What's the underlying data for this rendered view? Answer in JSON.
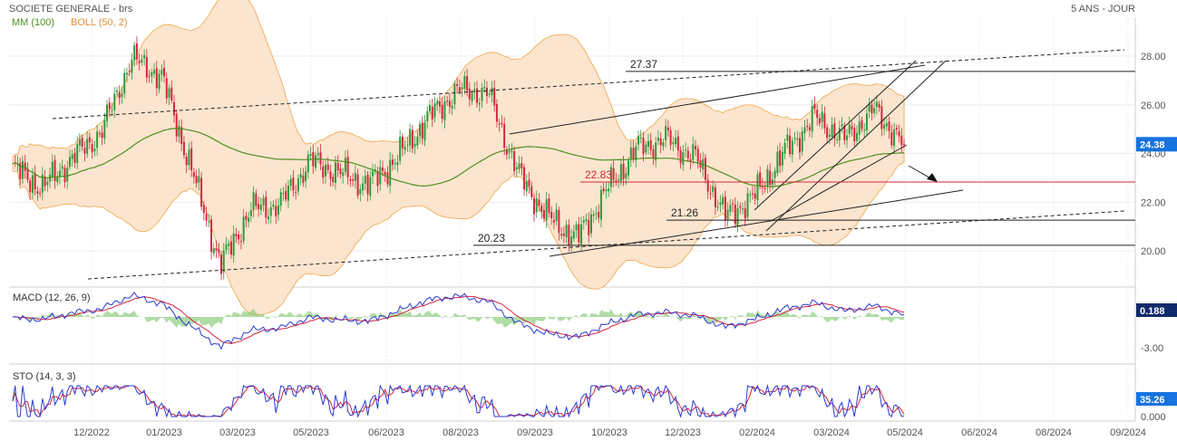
{
  "header": {
    "title": "SOCIETE GENERALE - brs",
    "period": "5 ANS - JOUR",
    "legend_ma": "MM (100)",
    "legend_boll": "BOLL (50, 2)"
  },
  "colors": {
    "up": "#2e9b3b",
    "down": "#d3263f",
    "ma": "#4f8f22",
    "boll_fill": "#fbe5cf",
    "boll_line": "#f0a54a",
    "macd": "#2b3bd0",
    "signal": "#d3263f",
    "hist": "#7cc46b",
    "price_badge": "#1673e0",
    "support": "#d3263f"
  },
  "x_axis": {
    "labels": [
      "12/2022",
      "01/2023",
      "03/2023",
      "05/2023",
      "06/2023",
      "08/2023",
      "09/2023",
      "10/2023",
      "12/2023",
      "02/2024",
      "03/2024",
      "05/2024",
      "06/2024",
      "08/2024",
      "09/2024"
    ]
  },
  "chart_data": [
    {
      "type": "candlestick",
      "panel": "price",
      "y_ticks": [
        "28.00",
        "26.00",
        "24.00",
        "22.00",
        "20.00"
      ],
      "ylim": [
        18.5,
        28.8
      ],
      "last_price_label": "24.38",
      "series": [
        {
          "name": "MM (100)"
        },
        {
          "name": "BOLL (50, 2)"
        }
      ],
      "close_path": [
        {
          "x": "11/2022",
          "y": 23.4
        },
        {
          "x": "12/2022",
          "y": 22.6
        },
        {
          "x": "12/2022",
          "y": 23.8
        },
        {
          "x": "01/2023",
          "y": 24.9
        },
        {
          "x": "01/2023",
          "y": 27.9
        },
        {
          "x": "02/2023",
          "y": 27.2
        },
        {
          "x": "03/2023",
          "y": 23.4
        },
        {
          "x": "03/2023",
          "y": 19.4
        },
        {
          "x": "04/2023",
          "y": 21.7
        },
        {
          "x": "05/2023",
          "y": 21.9
        },
        {
          "x": "05/2023",
          "y": 23.7
        },
        {
          "x": "06/2023",
          "y": 23.2
        },
        {
          "x": "06/2023",
          "y": 22.7
        },
        {
          "x": "07/2023",
          "y": 23.9
        },
        {
          "x": "08/2023",
          "y": 25.5
        },
        {
          "x": "08/2023",
          "y": 26.6
        },
        {
          "x": "09/2023",
          "y": 26.5
        },
        {
          "x": "09/2023",
          "y": 23.2
        },
        {
          "x": "10/2023",
          "y": 21.4
        },
        {
          "x": "10/2023",
          "y": 20.5
        },
        {
          "x": "11/2023",
          "y": 22.5
        },
        {
          "x": "12/2023",
          "y": 24.2
        },
        {
          "x": "12/2023",
          "y": 24.6
        },
        {
          "x": "01/2024",
          "y": 23.8
        },
        {
          "x": "02/2024",
          "y": 21.4
        },
        {
          "x": "02/2024",
          "y": 22.3
        },
        {
          "x": "03/2024",
          "y": 24.1
        },
        {
          "x": "04/2024",
          "y": 25.5
        },
        {
          "x": "04/2024",
          "y": 24.6
        },
        {
          "x": "05/2024",
          "y": 25.8
        },
        {
          "x": "05/2024",
          "y": 24.38
        }
      ],
      "levels": [
        {
          "label": "27.37",
          "value": 27.37
        },
        {
          "label": "22.83",
          "value": 22.83
        },
        {
          "label": "21.26",
          "value": 21.26
        },
        {
          "label": "20.23",
          "value": 20.23
        }
      ]
    },
    {
      "type": "line",
      "panel": "MACD",
      "title": "MACD (12, 26, 9)",
      "y_ticks": [
        "-3.00"
      ],
      "last_value_label": "0.188",
      "series": [
        {
          "name": "MACD"
        },
        {
          "name": "Signal"
        },
        {
          "name": "Histogram"
        }
      ]
    },
    {
      "type": "line",
      "panel": "STO",
      "title": "STO (14, 3, 3)",
      "y_ticks": [
        "0.000"
      ],
      "last_value_label": "35.26",
      "series": [
        {
          "name": "%K"
        },
        {
          "name": "%D"
        }
      ]
    }
  ]
}
